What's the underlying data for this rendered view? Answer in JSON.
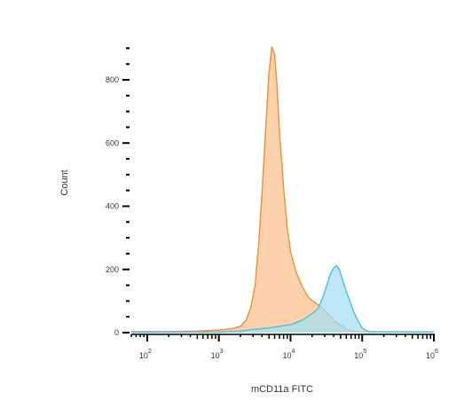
{
  "chart_data": {
    "type": "area",
    "title": "",
    "xlabel": "mCD11a FITC",
    "ylabel": "Count",
    "x_scale": "log",
    "xlim": [
      60,
      1000000
    ],
    "ylim": [
      0,
      960
    ],
    "y_ticks": [
      0,
      200,
      400,
      600,
      800
    ],
    "y_tick_labels": [
      "0",
      "200",
      "400",
      "600",
      "800"
    ],
    "x_ticks": [
      100,
      1000,
      10000,
      100000,
      1000000
    ],
    "x_tick_labels": [
      {
        "base": "10",
        "exp": "2"
      },
      {
        "base": "10",
        "exp": "3"
      },
      {
        "base": "10",
        "exp": "4"
      },
      {
        "base": "10",
        "exp": "5"
      },
      {
        "base": "10",
        "exp": "6"
      }
    ],
    "series": [
      {
        "fill": "#fdc99c",
        "stroke": "#e8973f",
        "points": [
          [
            60,
            3
          ],
          [
            200,
            3
          ],
          [
            500,
            5
          ],
          [
            1000,
            8
          ],
          [
            1500,
            12
          ],
          [
            2000,
            20
          ],
          [
            2400,
            40
          ],
          [
            2800,
            80
          ],
          [
            3200,
            150
          ],
          [
            3600,
            280
          ],
          [
            4000,
            440
          ],
          [
            4500,
            640
          ],
          [
            5000,
            820
          ],
          [
            5500,
            905
          ],
          [
            6000,
            880
          ],
          [
            6500,
            780
          ],
          [
            7000,
            640
          ],
          [
            8000,
            460
          ],
          [
            9000,
            330
          ],
          [
            10000,
            255
          ],
          [
            12000,
            190
          ],
          [
            15000,
            140
          ],
          [
            18000,
            110
          ],
          [
            22000,
            95
          ],
          [
            25000,
            85
          ],
          [
            30000,
            70
          ],
          [
            35000,
            55
          ],
          [
            40000,
            40
          ],
          [
            50000,
            22
          ],
          [
            60000,
            12
          ],
          [
            70000,
            6
          ],
          [
            90000,
            3
          ],
          [
            150000,
            2
          ],
          [
            1000000,
            2
          ]
        ]
      },
      {
        "fill": "#a7dff4",
        "stroke": "#4cc5de",
        "points": [
          [
            60,
            1
          ],
          [
            1000,
            2
          ],
          [
            2000,
            5
          ],
          [
            3000,
            10
          ],
          [
            5000,
            15
          ],
          [
            7000,
            20
          ],
          [
            10000,
            25
          ],
          [
            13000,
            35
          ],
          [
            16000,
            45
          ],
          [
            20000,
            60
          ],
          [
            24000,
            75
          ],
          [
            28000,
            110
          ],
          [
            32000,
            150
          ],
          [
            36000,
            185
          ],
          [
            40000,
            205
          ],
          [
            44000,
            212
          ],
          [
            48000,
            200
          ],
          [
            52000,
            175
          ],
          [
            58000,
            140
          ],
          [
            65000,
            110
          ],
          [
            72000,
            80
          ],
          [
            80000,
            55
          ],
          [
            90000,
            32
          ],
          [
            100000,
            15
          ],
          [
            115000,
            6
          ],
          [
            130000,
            3
          ],
          [
            1000000,
            2
          ]
        ]
      }
    ]
  }
}
